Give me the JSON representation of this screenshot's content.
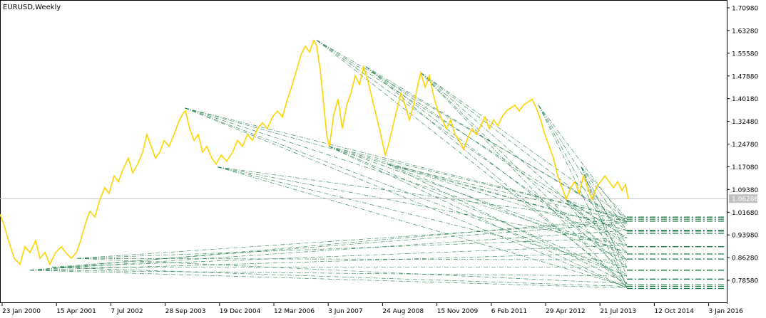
{
  "window": {
    "title": "EURUSD,Weekly"
  },
  "chart_data": {
    "type": "line",
    "symbol": "EURUSD",
    "timeframe": "Weekly",
    "title": "EURUSD,Weekly",
    "ylim": [
      0.74,
      1.74
    ],
    "y_ticks": [
      "1.70980",
      "1.63280",
      "1.55580",
      "1.47880",
      "1.40180",
      "1.32480",
      "1.24780",
      "1.17080",
      "1.09380",
      "1.01680",
      "0.93980",
      "0.86280",
      "0.78580"
    ],
    "x_ticks": [
      "23 Jan 2000",
      "15 Apr 2001",
      "7 Jul 2002",
      "28 Sep 2003",
      "19 Dec 2004",
      "12 Mar 2006",
      "3 Jun 2007",
      "24 Aug 2008",
      "15 Nov 2009",
      "6 Feb 2011",
      "29 Apr 2012",
      "21 Jul 2013",
      "12 Oct 2014",
      "3 Jan 2016"
    ],
    "current_price": {
      "label": "1.06286",
      "value": 1.06286
    },
    "colors": {
      "price": "#ffd400",
      "fan": "#1e7a46",
      "grid_line": "#c0c0c0",
      "current_bg": "#c0c0c0"
    },
    "price_series": [
      [
        0,
        1.01
      ],
      [
        6,
        0.97
      ],
      [
        12,
        0.92
      ],
      [
        20,
        0.86
      ],
      [
        28,
        0.84
      ],
      [
        35,
        0.9
      ],
      [
        42,
        0.88
      ],
      [
        50,
        0.92
      ],
      [
        56,
        0.86
      ],
      [
        63,
        0.88
      ],
      [
        70,
        0.84
      ],
      [
        78,
        0.88
      ],
      [
        86,
        0.9
      ],
      [
        92,
        0.88
      ],
      [
        100,
        0.86
      ],
      [
        107,
        0.88
      ],
      [
        113,
        0.92
      ],
      [
        120,
        0.98
      ],
      [
        126,
        1.02
      ],
      [
        133,
        1.0
      ],
      [
        140,
        1.06
      ],
      [
        147,
        1.1
      ],
      [
        153,
        1.08
      ],
      [
        160,
        1.14
      ],
      [
        166,
        1.12
      ],
      [
        172,
        1.16
      ],
      [
        180,
        1.2
      ],
      [
        186,
        1.15
      ],
      [
        193,
        1.18
      ],
      [
        200,
        1.22
      ],
      [
        206,
        1.28
      ],
      [
        212,
        1.24
      ],
      [
        218,
        1.2
      ],
      [
        224,
        1.22
      ],
      [
        230,
        1.26
      ],
      [
        237,
        1.24
      ],
      [
        244,
        1.28
      ],
      [
        250,
        1.32
      ],
      [
        256,
        1.35
      ],
      [
        260,
        1.36
      ],
      [
        266,
        1.3
      ],
      [
        272,
        1.26
      ],
      [
        278,
        1.28
      ],
      [
        284,
        1.22
      ],
      [
        290,
        1.24
      ],
      [
        297,
        1.2
      ],
      [
        303,
        1.18
      ],
      [
        310,
        1.21
      ],
      [
        318,
        1.19
      ],
      [
        326,
        1.22
      ],
      [
        333,
        1.26
      ],
      [
        340,
        1.24
      ],
      [
        347,
        1.28
      ],
      [
        354,
        1.26
      ],
      [
        361,
        1.3
      ],
      [
        368,
        1.32
      ],
      [
        375,
        1.3
      ],
      [
        382,
        1.34
      ],
      [
        389,
        1.36
      ],
      [
        396,
        1.34
      ],
      [
        403,
        1.4
      ],
      [
        410,
        1.45
      ],
      [
        416,
        1.5
      ],
      [
        422,
        1.55
      ],
      [
        428,
        1.58
      ],
      [
        434,
        1.56
      ],
      [
        440,
        1.6
      ],
      [
        444,
        1.58
      ],
      [
        449,
        1.5
      ],
      [
        454,
        1.38
      ],
      [
        458,
        1.28
      ],
      [
        462,
        1.24
      ],
      [
        468,
        1.35
      ],
      [
        474,
        1.4
      ],
      [
        480,
        1.3
      ],
      [
        486,
        1.38
      ],
      [
        492,
        1.42
      ],
      [
        498,
        1.48
      ],
      [
        504,
        1.45
      ],
      [
        510,
        1.51
      ],
      [
        516,
        1.46
      ],
      [
        522,
        1.4
      ],
      [
        528,
        1.34
      ],
      [
        534,
        1.28
      ],
      [
        540,
        1.21
      ],
      [
        544,
        1.24
      ],
      [
        550,
        1.3
      ],
      [
        556,
        1.36
      ],
      [
        562,
        1.42
      ],
      [
        568,
        1.38
      ],
      [
        574,
        1.33
      ],
      [
        580,
        1.38
      ],
      [
        586,
        1.45
      ],
      [
        590,
        1.49
      ],
      [
        596,
        1.44
      ],
      [
        602,
        1.48
      ],
      [
        608,
        1.41
      ],
      [
        614,
        1.36
      ],
      [
        620,
        1.33
      ],
      [
        626,
        1.3
      ],
      [
        632,
        1.33
      ],
      [
        638,
        1.28
      ],
      [
        644,
        1.26
      ],
      [
        650,
        1.23
      ],
      [
        656,
        1.27
      ],
      [
        662,
        1.3
      ],
      [
        668,
        1.28
      ],
      [
        674,
        1.31
      ],
      [
        680,
        1.34
      ],
      [
        686,
        1.3
      ],
      [
        692,
        1.33
      ],
      [
        698,
        1.31
      ],
      [
        704,
        1.34
      ],
      [
        710,
        1.36
      ],
      [
        716,
        1.37
      ],
      [
        722,
        1.38
      ],
      [
        728,
        1.36
      ],
      [
        734,
        1.38
      ],
      [
        740,
        1.39
      ],
      [
        746,
        1.4
      ],
      [
        752,
        1.37
      ],
      [
        758,
        1.33
      ],
      [
        764,
        1.28
      ],
      [
        770,
        1.24
      ],
      [
        776,
        1.2
      ],
      [
        782,
        1.14
      ],
      [
        788,
        1.1
      ],
      [
        794,
        1.06
      ],
      [
        800,
        1.1
      ],
      [
        806,
        1.12
      ],
      [
        812,
        1.08
      ],
      [
        818,
        1.14
      ],
      [
        824,
        1.1
      ],
      [
        830,
        1.06
      ],
      [
        836,
        1.1
      ],
      [
        842,
        1.12
      ],
      [
        848,
        1.14
      ],
      [
        854,
        1.12
      ],
      [
        860,
        1.1
      ],
      [
        866,
        1.12
      ],
      [
        872,
        1.09
      ],
      [
        877,
        1.11
      ],
      [
        881,
        1.06
      ]
    ],
    "fan_pivots": [
      [
        42,
        0.82
      ],
      [
        73,
        0.83
      ],
      [
        108,
        0.86
      ],
      [
        259,
        1.37
      ],
      [
        305,
        1.17
      ],
      [
        444,
        1.6
      ],
      [
        461,
        1.24
      ],
      [
        513,
        1.51
      ],
      [
        543,
        1.18
      ],
      [
        590,
        1.49
      ],
      [
        755,
        1.38
      ],
      [
        793,
        1.06
      ],
      [
        815,
        1.17
      ]
    ],
    "fan_ends": [
      [
        879,
        0.995
      ],
      [
        879,
        0.985
      ],
      [
        879,
        0.98
      ],
      [
        879,
        0.955
      ],
      [
        879,
        0.93
      ],
      [
        879,
        0.905
      ],
      [
        879,
        0.88
      ],
      [
        879,
        0.855
      ],
      [
        879,
        0.83
      ],
      [
        879,
        0.8
      ],
      [
        879,
        0.775
      ],
      [
        879,
        0.765
      ],
      [
        879,
        0.76
      ]
    ],
    "projection_levels": [
      1.0,
      0.993,
      0.986,
      0.955,
      0.953,
      0.945,
      0.9,
      0.875,
      0.858,
      0.82,
      0.79,
      0.77,
      0.765,
      0.758
    ]
  }
}
